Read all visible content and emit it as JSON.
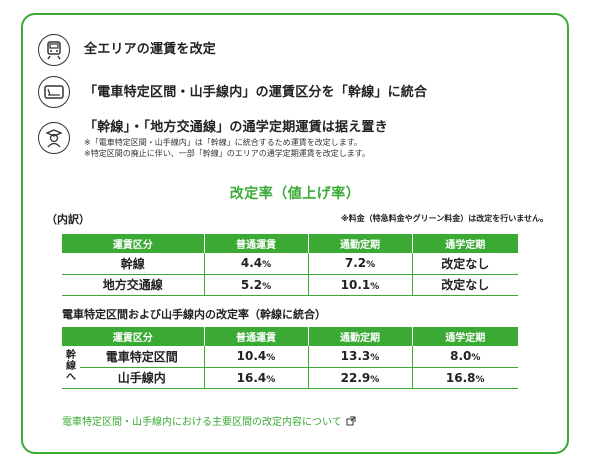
{
  "features": [
    {
      "icon": "train-icon",
      "title": "全エリアの運賃を改定",
      "notes": []
    },
    {
      "icon": "ticket-icon",
      "title": "「電車特定区間・山手線内」の運賃区分を「幹線」に統合",
      "notes": []
    },
    {
      "icon": "student-icon",
      "title": "「幹線」・「地方交通線」の通学定期運賃は据え置き",
      "notes": [
        "※「電車特定区間・山手線内」は「幹線」に統合するため運賃を改定します。",
        "※特定区間の廃止に伴い、一部「幹線」のエリアの通学定期運賃を改定します。"
      ]
    }
  ],
  "section_title": "改定率（値上げ率）",
  "breakdown_label": "（内訳）",
  "fee_note": "※料金（特急料金やグリーン料金）は改定を行いません。",
  "table1": {
    "headers": [
      "運賃区分",
      "普通運賃",
      "通勤定期",
      "通学定期"
    ],
    "rows": [
      {
        "label": "幹線",
        "normal": "4.4",
        "commute": "7.2",
        "school": "改定なし"
      },
      {
        "label": "地方交通線",
        "normal": "5.2",
        "commute": "10.1",
        "school": "改定なし"
      }
    ]
  },
  "table2_title": "電車特定区間および山手線内の改定率（幹線に統合）",
  "table2": {
    "headers": [
      "運賃区分",
      "普通運賃",
      "通勤定期",
      "通学定期"
    ],
    "side_label": [
      "幹",
      "線",
      "へ"
    ],
    "rows": [
      {
        "label": "電車特定区間",
        "normal": "10.4",
        "commute": "13.3",
        "school": "8.0"
      },
      {
        "label": "山手線内",
        "normal": "16.4",
        "commute": "22.9",
        "school": "16.8"
      }
    ]
  },
  "percent_unit": "%",
  "link_text": "電車特定区間・山手線内における主要区間の改定内容について",
  "colors": {
    "accent": "#3aaa35",
    "text": "#222222"
  }
}
